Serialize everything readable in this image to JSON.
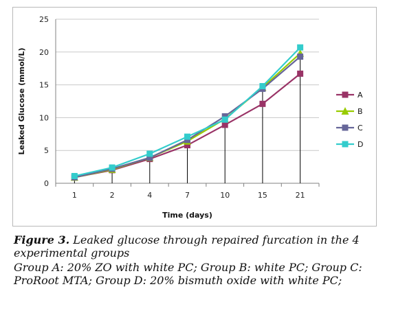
{
  "chart_data": {
    "type": "line",
    "categories": [
      "1",
      "2",
      "4",
      "7",
      "10",
      "15",
      "21"
    ],
    "xlabel": "Time (days)",
    "ylabel": "Leaked Glucose (mmol/L)",
    "ylim": [
      0,
      25
    ],
    "yticks": [
      "0",
      "5",
      "10",
      "15",
      "20",
      "25"
    ],
    "grid": "horizontal",
    "legend": "right",
    "series": [
      {
        "name": "A",
        "color": "#993366",
        "marker": "square",
        "values": [
          0.9,
          2.0,
          3.7,
          5.8,
          8.9,
          12.1,
          16.7
        ]
      },
      {
        "name": "B",
        "color": "#99cc00",
        "marker": "triangle",
        "values": [
          0.9,
          2.1,
          3.9,
          6.4,
          9.8,
          14.6,
          19.8
        ]
      },
      {
        "name": "C",
        "color": "#666699",
        "marker": "square",
        "values": [
          0.9,
          2.2,
          3.9,
          6.6,
          10.2,
          14.4,
          19.3
        ]
      },
      {
        "name": "D",
        "color": "#33cccc",
        "marker": "square",
        "values": [
          1.1,
          2.4,
          4.5,
          7.1,
          9.7,
          14.8,
          20.7
        ]
      }
    ]
  },
  "caption": {
    "figure_label": "Figure 3.",
    "title_text": " Leaked glucose through repaired furcation in the 4 experimental groups",
    "groups_text": "Group A: 20% ZO with white PC; Group B: white PC; Group C: ProRoot MTA; Group D: 20% bismuth oxide with white PC;"
  }
}
